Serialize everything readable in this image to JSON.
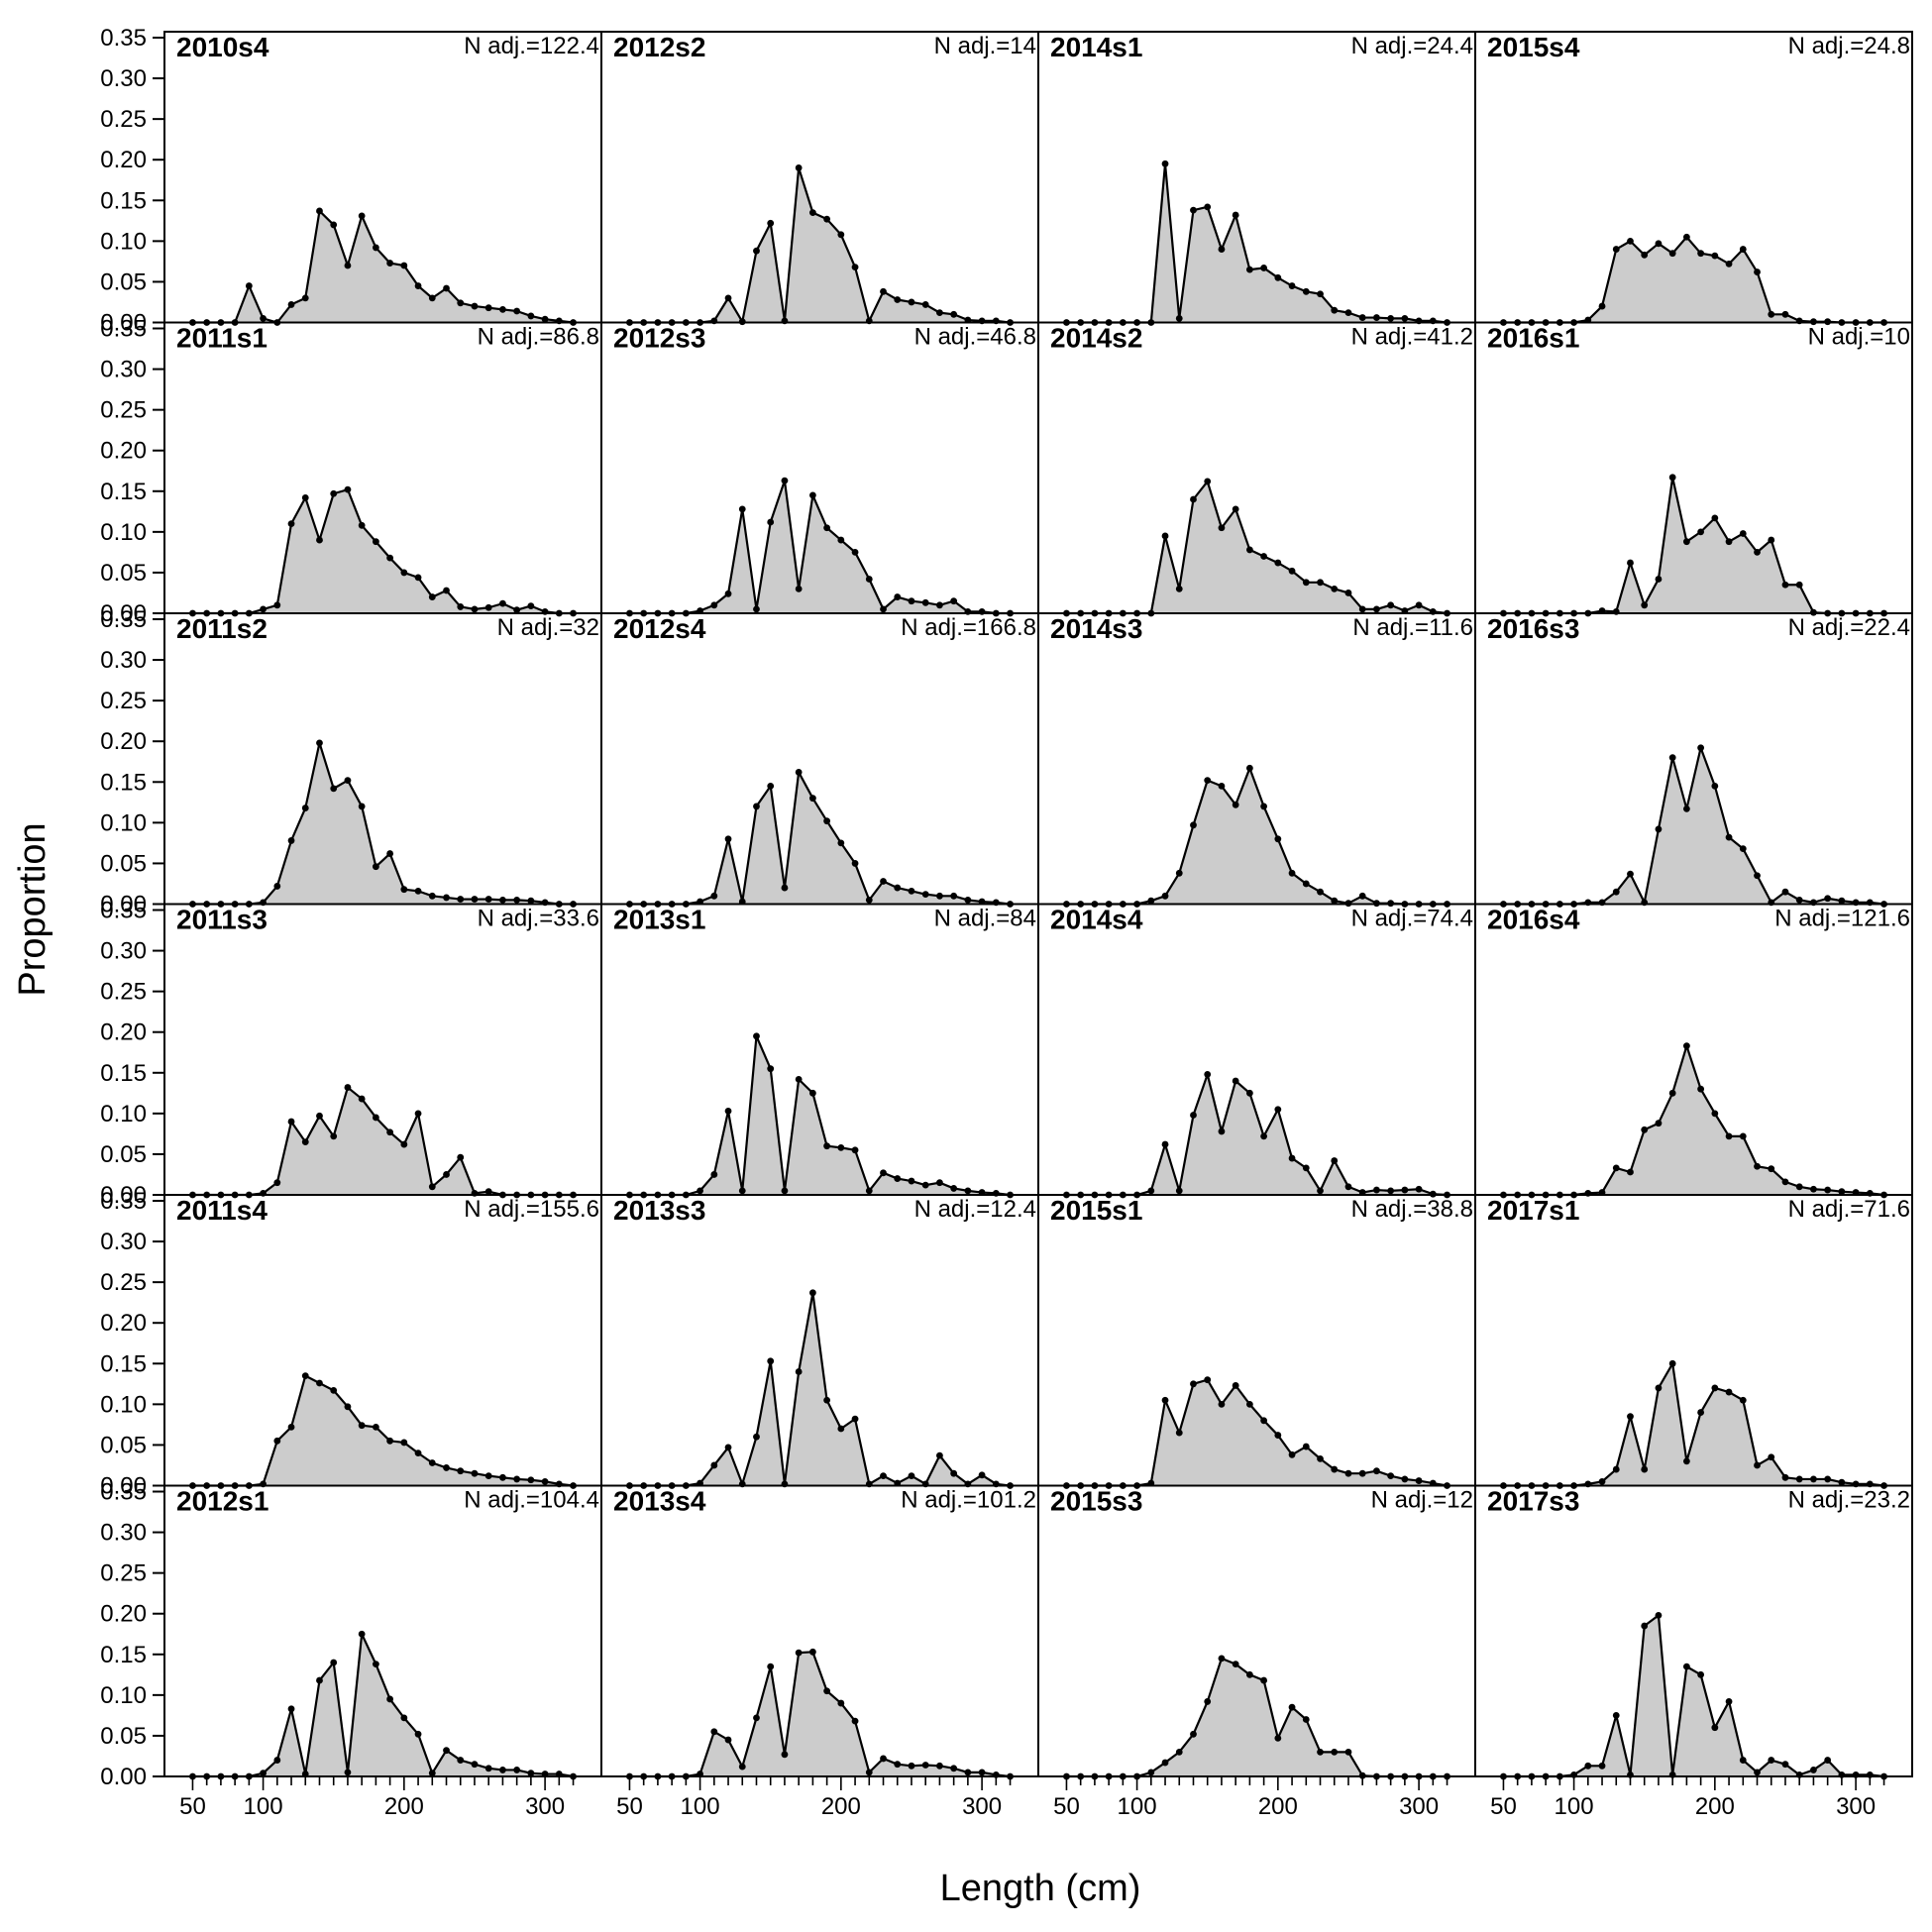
{
  "chart_data": {
    "type": "area",
    "xlabel": "Length (cm)",
    "ylabel": "Proportion",
    "ylim": [
      0,
      0.35
    ],
    "yticks": [
      0.0,
      0.05,
      0.1,
      0.15,
      0.2,
      0.25,
      0.3,
      0.35
    ],
    "xlim": [
      30,
      340
    ],
    "xticks": [
      50,
      100,
      200,
      300
    ],
    "x": [
      50,
      60,
      70,
      80,
      90,
      100,
      110,
      120,
      130,
      140,
      150,
      160,
      170,
      180,
      190,
      200,
      210,
      220,
      230,
      240,
      250,
      260,
      270,
      280,
      290,
      300,
      310,
      320
    ],
    "panels": [
      {
        "name": "2010s4",
        "nadj": "N adj.=122.4",
        "values": [
          0,
          0,
          0,
          0,
          0.045,
          0.005,
          0,
          0.022,
          0.03,
          0.137,
          0.12,
          0.07,
          0.131,
          0.092,
          0.073,
          0.07,
          0.045,
          0.03,
          0.042,
          0.024,
          0.02,
          0.018,
          0.016,
          0.014,
          0.008,
          0.004,
          0.002,
          0
        ]
      },
      {
        "name": "2011s1",
        "nadj": "N adj.=86.8",
        "values": [
          0,
          0,
          0,
          0,
          0,
          0.005,
          0.01,
          0.11,
          0.142,
          0.09,
          0.147,
          0.152,
          0.108,
          0.088,
          0.068,
          0.05,
          0.044,
          0.02,
          0.028,
          0.008,
          0.005,
          0.007,
          0.012,
          0.004,
          0.009,
          0.002,
          0,
          0
        ]
      },
      {
        "name": "2011s2",
        "nadj": "N adj.=32",
        "values": [
          0,
          0,
          0,
          0,
          0,
          0.002,
          0.022,
          0.078,
          0.118,
          0.198,
          0.142,
          0.152,
          0.12,
          0.046,
          0.062,
          0.018,
          0.016,
          0.01,
          0.008,
          0.006,
          0.006,
          0.006,
          0.005,
          0.005,
          0.004,
          0.002,
          0,
          0
        ]
      },
      {
        "name": "2011s3",
        "nadj": "N adj.=33.6",
        "values": [
          0,
          0,
          0,
          0,
          0,
          0.002,
          0.015,
          0.09,
          0.065,
          0.097,
          0.072,
          0.132,
          0.118,
          0.095,
          0.077,
          0.062,
          0.1,
          0.01,
          0.025,
          0.046,
          0.002,
          0.004,
          0,
          0,
          0,
          0,
          0,
          0
        ]
      },
      {
        "name": "2011s4",
        "nadj": "N adj.=155.6",
        "values": [
          0,
          0,
          0,
          0,
          0,
          0.002,
          0.055,
          0.072,
          0.135,
          0.126,
          0.117,
          0.097,
          0.074,
          0.072,
          0.055,
          0.053,
          0.04,
          0.028,
          0.022,
          0.018,
          0.015,
          0.012,
          0.01,
          0.008,
          0.007,
          0.005,
          0.002,
          0
        ]
      },
      {
        "name": "2012s1",
        "nadj": "N adj.=104.4",
        "values": [
          0,
          0,
          0,
          0,
          0,
          0.004,
          0.02,
          0.083,
          0.003,
          0.118,
          0.14,
          0.005,
          0.175,
          0.138,
          0.095,
          0.072,
          0.052,
          0.004,
          0.032,
          0.02,
          0.015,
          0.01,
          0.008,
          0.008,
          0.004,
          0.003,
          0.003,
          0
        ]
      },
      {
        "name": "2012s2",
        "nadj": "N adj.=14",
        "values": [
          0,
          0,
          0,
          0,
          0,
          0,
          0.002,
          0.03,
          0.001,
          0.088,
          0.122,
          0.002,
          0.19,
          0.135,
          0.127,
          0.108,
          0.068,
          0.002,
          0.038,
          0.028,
          0.025,
          0.022,
          0.012,
          0.01,
          0.003,
          0.002,
          0.002,
          0
        ]
      },
      {
        "name": "2012s3",
        "nadj": "N adj.=46.8",
        "values": [
          0,
          0,
          0,
          0,
          0,
          0.003,
          0.01,
          0.024,
          0.128,
          0.005,
          0.112,
          0.163,
          0.03,
          0.145,
          0.105,
          0.09,
          0.075,
          0.042,
          0.005,
          0.02,
          0.015,
          0.013,
          0.01,
          0.015,
          0.002,
          0.002,
          0,
          0
        ]
      },
      {
        "name": "2012s4",
        "nadj": "N adj.=166.8",
        "values": [
          0,
          0,
          0,
          0,
          0,
          0.003,
          0.01,
          0.08,
          0.003,
          0.12,
          0.145,
          0.02,
          0.162,
          0.13,
          0.102,
          0.075,
          0.05,
          0.005,
          0.028,
          0.02,
          0.016,
          0.012,
          0.01,
          0.01,
          0.005,
          0.003,
          0.002,
          0
        ]
      },
      {
        "name": "2013s1",
        "nadj": "N adj.=84",
        "values": [
          0,
          0,
          0,
          0,
          0,
          0.005,
          0.025,
          0.103,
          0.005,
          0.195,
          0.155,
          0.005,
          0.142,
          0.125,
          0.06,
          0.058,
          0.055,
          0.005,
          0.027,
          0.02,
          0.017,
          0.012,
          0.015,
          0.008,
          0.005,
          0.003,
          0.002,
          0
        ]
      },
      {
        "name": "2013s3",
        "nadj": "N adj.=12.4",
        "values": [
          0,
          0,
          0,
          0,
          0,
          0.003,
          0.025,
          0.047,
          0.002,
          0.06,
          0.153,
          0.002,
          0.14,
          0.237,
          0.105,
          0.07,
          0.082,
          0.002,
          0.012,
          0.003,
          0.012,
          0.002,
          0.037,
          0.015,
          0.002,
          0.013,
          0.002,
          0
        ]
      },
      {
        "name": "2013s4",
        "nadj": "N adj.=101.2",
        "values": [
          0,
          0,
          0,
          0,
          0,
          0.003,
          0.055,
          0.045,
          0.012,
          0.072,
          0.135,
          0.027,
          0.152,
          0.153,
          0.105,
          0.09,
          0.068,
          0.005,
          0.022,
          0.015,
          0.013,
          0.014,
          0.013,
          0.01,
          0.005,
          0.005,
          0.002,
          0
        ]
      },
      {
        "name": "2014s1",
        "nadj": "N adj.=24.4",
        "values": [
          0,
          0,
          0,
          0,
          0,
          0,
          0,
          0.195,
          0.005,
          0.138,
          0.142,
          0.09,
          0.132,
          0.065,
          0.067,
          0.055,
          0.045,
          0.038,
          0.035,
          0.015,
          0.012,
          0.006,
          0.006,
          0.005,
          0.005,
          0.002,
          0.002,
          0
        ]
      },
      {
        "name": "2014s2",
        "nadj": "N adj.=41.2",
        "values": [
          0,
          0,
          0,
          0,
          0,
          0,
          0,
          0.095,
          0.03,
          0.14,
          0.162,
          0.105,
          0.128,
          0.078,
          0.07,
          0.062,
          0.052,
          0.038,
          0.038,
          0.03,
          0.025,
          0.005,
          0.005,
          0.01,
          0.003,
          0.01,
          0.002,
          0
        ]
      },
      {
        "name": "2014s3",
        "nadj": "N adj.=11.6",
        "values": [
          0,
          0,
          0,
          0,
          0,
          0,
          0.004,
          0.01,
          0.038,
          0.097,
          0.152,
          0.145,
          0.122,
          0.167,
          0.12,
          0.08,
          0.038,
          0.025,
          0.015,
          0.004,
          0.001,
          0.01,
          0.001,
          0.001,
          0,
          0,
          0,
          0
        ]
      },
      {
        "name": "2014s4",
        "nadj": "N adj.=74.4",
        "values": [
          0,
          0,
          0,
          0,
          0,
          0,
          0.005,
          0.062,
          0.005,
          0.098,
          0.148,
          0.078,
          0.14,
          0.125,
          0.072,
          0.105,
          0.045,
          0.033,
          0.005,
          0.042,
          0.01,
          0.003,
          0.006,
          0.005,
          0.006,
          0.007,
          0.001,
          0
        ]
      },
      {
        "name": "2015s1",
        "nadj": "N adj.=38.8",
        "values": [
          0,
          0,
          0,
          0,
          0,
          0,
          0.003,
          0.105,
          0.065,
          0.125,
          0.13,
          0.1,
          0.123,
          0.1,
          0.08,
          0.062,
          0.038,
          0.048,
          0.033,
          0.02,
          0.015,
          0.015,
          0.018,
          0.012,
          0.008,
          0.006,
          0.003,
          0
        ]
      },
      {
        "name": "2015s3",
        "nadj": "N adj.=12",
        "values": [
          0,
          0,
          0,
          0,
          0,
          0,
          0.005,
          0.017,
          0.03,
          0.052,
          0.092,
          0.145,
          0.138,
          0.125,
          0.118,
          0.047,
          0.085,
          0.07,
          0.03,
          0.03,
          0.03,
          0.001,
          0,
          0,
          0,
          0,
          0,
          0
        ]
      },
      {
        "name": "2015s4",
        "nadj": "N adj.=24.8",
        "values": [
          0,
          0,
          0,
          0,
          0,
          0,
          0.003,
          0.02,
          0.09,
          0.1,
          0.083,
          0.097,
          0.085,
          0.105,
          0.085,
          0.082,
          0.072,
          0.09,
          0.062,
          0.01,
          0.01,
          0.002,
          0.001,
          0.001,
          0,
          0,
          0,
          0
        ]
      },
      {
        "name": "2016s1",
        "nadj": "N adj.=10",
        "values": [
          0,
          0,
          0,
          0,
          0,
          0,
          0,
          0.003,
          0.002,
          0.062,
          0.01,
          0.042,
          0.167,
          0.088,
          0.1,
          0.117,
          0.088,
          0.098,
          0.075,
          0.09,
          0.035,
          0.035,
          0.001,
          0,
          0,
          0,
          0,
          0
        ]
      },
      {
        "name": "2016s3",
        "nadj": "N adj.=22.4",
        "values": [
          0,
          0,
          0,
          0,
          0,
          0,
          0.002,
          0.002,
          0.015,
          0.037,
          0.002,
          0.092,
          0.18,
          0.117,
          0.192,
          0.145,
          0.082,
          0.068,
          0.035,
          0.002,
          0.015,
          0.005,
          0.002,
          0.007,
          0.004,
          0.002,
          0.002,
          0
        ]
      },
      {
        "name": "2016s4",
        "nadj": "N adj.=121.6",
        "values": [
          0,
          0,
          0,
          0,
          0,
          0,
          0.002,
          0.003,
          0.033,
          0.028,
          0.08,
          0.088,
          0.125,
          0.183,
          0.13,
          0.1,
          0.072,
          0.072,
          0.035,
          0.032,
          0.016,
          0.01,
          0.007,
          0.006,
          0.004,
          0.003,
          0.002,
          0
        ]
      },
      {
        "name": "2017s1",
        "nadj": "N adj.=71.6",
        "values": [
          0,
          0,
          0,
          0,
          0,
          0,
          0.002,
          0.005,
          0.02,
          0.085,
          0.02,
          0.12,
          0.15,
          0.03,
          0.09,
          0.12,
          0.115,
          0.105,
          0.025,
          0.035,
          0.01,
          0.008,
          0.008,
          0.008,
          0.004,
          0.002,
          0.002,
          0
        ]
      },
      {
        "name": "2017s3",
        "nadj": "N adj.=23.2",
        "values": [
          0,
          0,
          0,
          0,
          0,
          0.002,
          0.013,
          0.013,
          0.075,
          0.002,
          0.185,
          0.198,
          0.002,
          0.135,
          0.125,
          0.06,
          0.092,
          0.02,
          0.005,
          0.02,
          0.015,
          0.002,
          0.008,
          0.02,
          0.002,
          0.002,
          0.002,
          0
        ]
      }
    ]
  }
}
